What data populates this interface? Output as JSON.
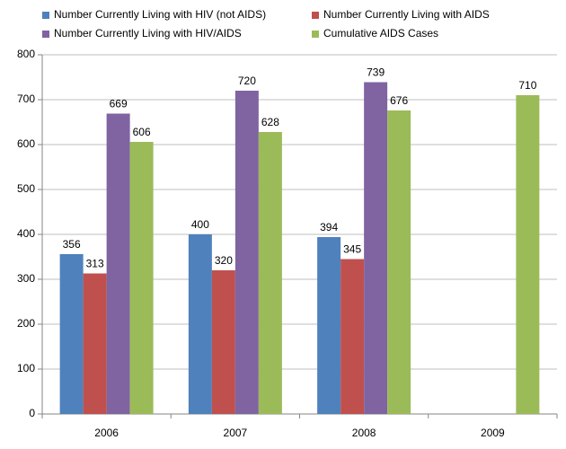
{
  "chart_data": {
    "type": "bar",
    "categories": [
      "2006",
      "2007",
      "2008",
      "2009"
    ],
    "series": [
      {
        "name": "Number Currently Living with HIV (not AIDS)",
        "color": "#4f81bd",
        "values": [
          356,
          400,
          394,
          null
        ]
      },
      {
        "name": "Number Currently Living with AIDS",
        "color": "#c0504d",
        "values": [
          313,
          320,
          345,
          null
        ]
      },
      {
        "name": "Number Currently Living with HIV/AIDS",
        "color": "#8064a2",
        "values": [
          669,
          720,
          739,
          null
        ]
      },
      {
        "name": "Cumulative AIDS Cases",
        "color": "#9bbb59",
        "values": [
          606,
          628,
          676,
          710
        ]
      }
    ],
    "ylim": [
      0,
      800
    ],
    "yticks": [
      0,
      100,
      200,
      300,
      400,
      500,
      600,
      700,
      800
    ],
    "grid": true
  }
}
